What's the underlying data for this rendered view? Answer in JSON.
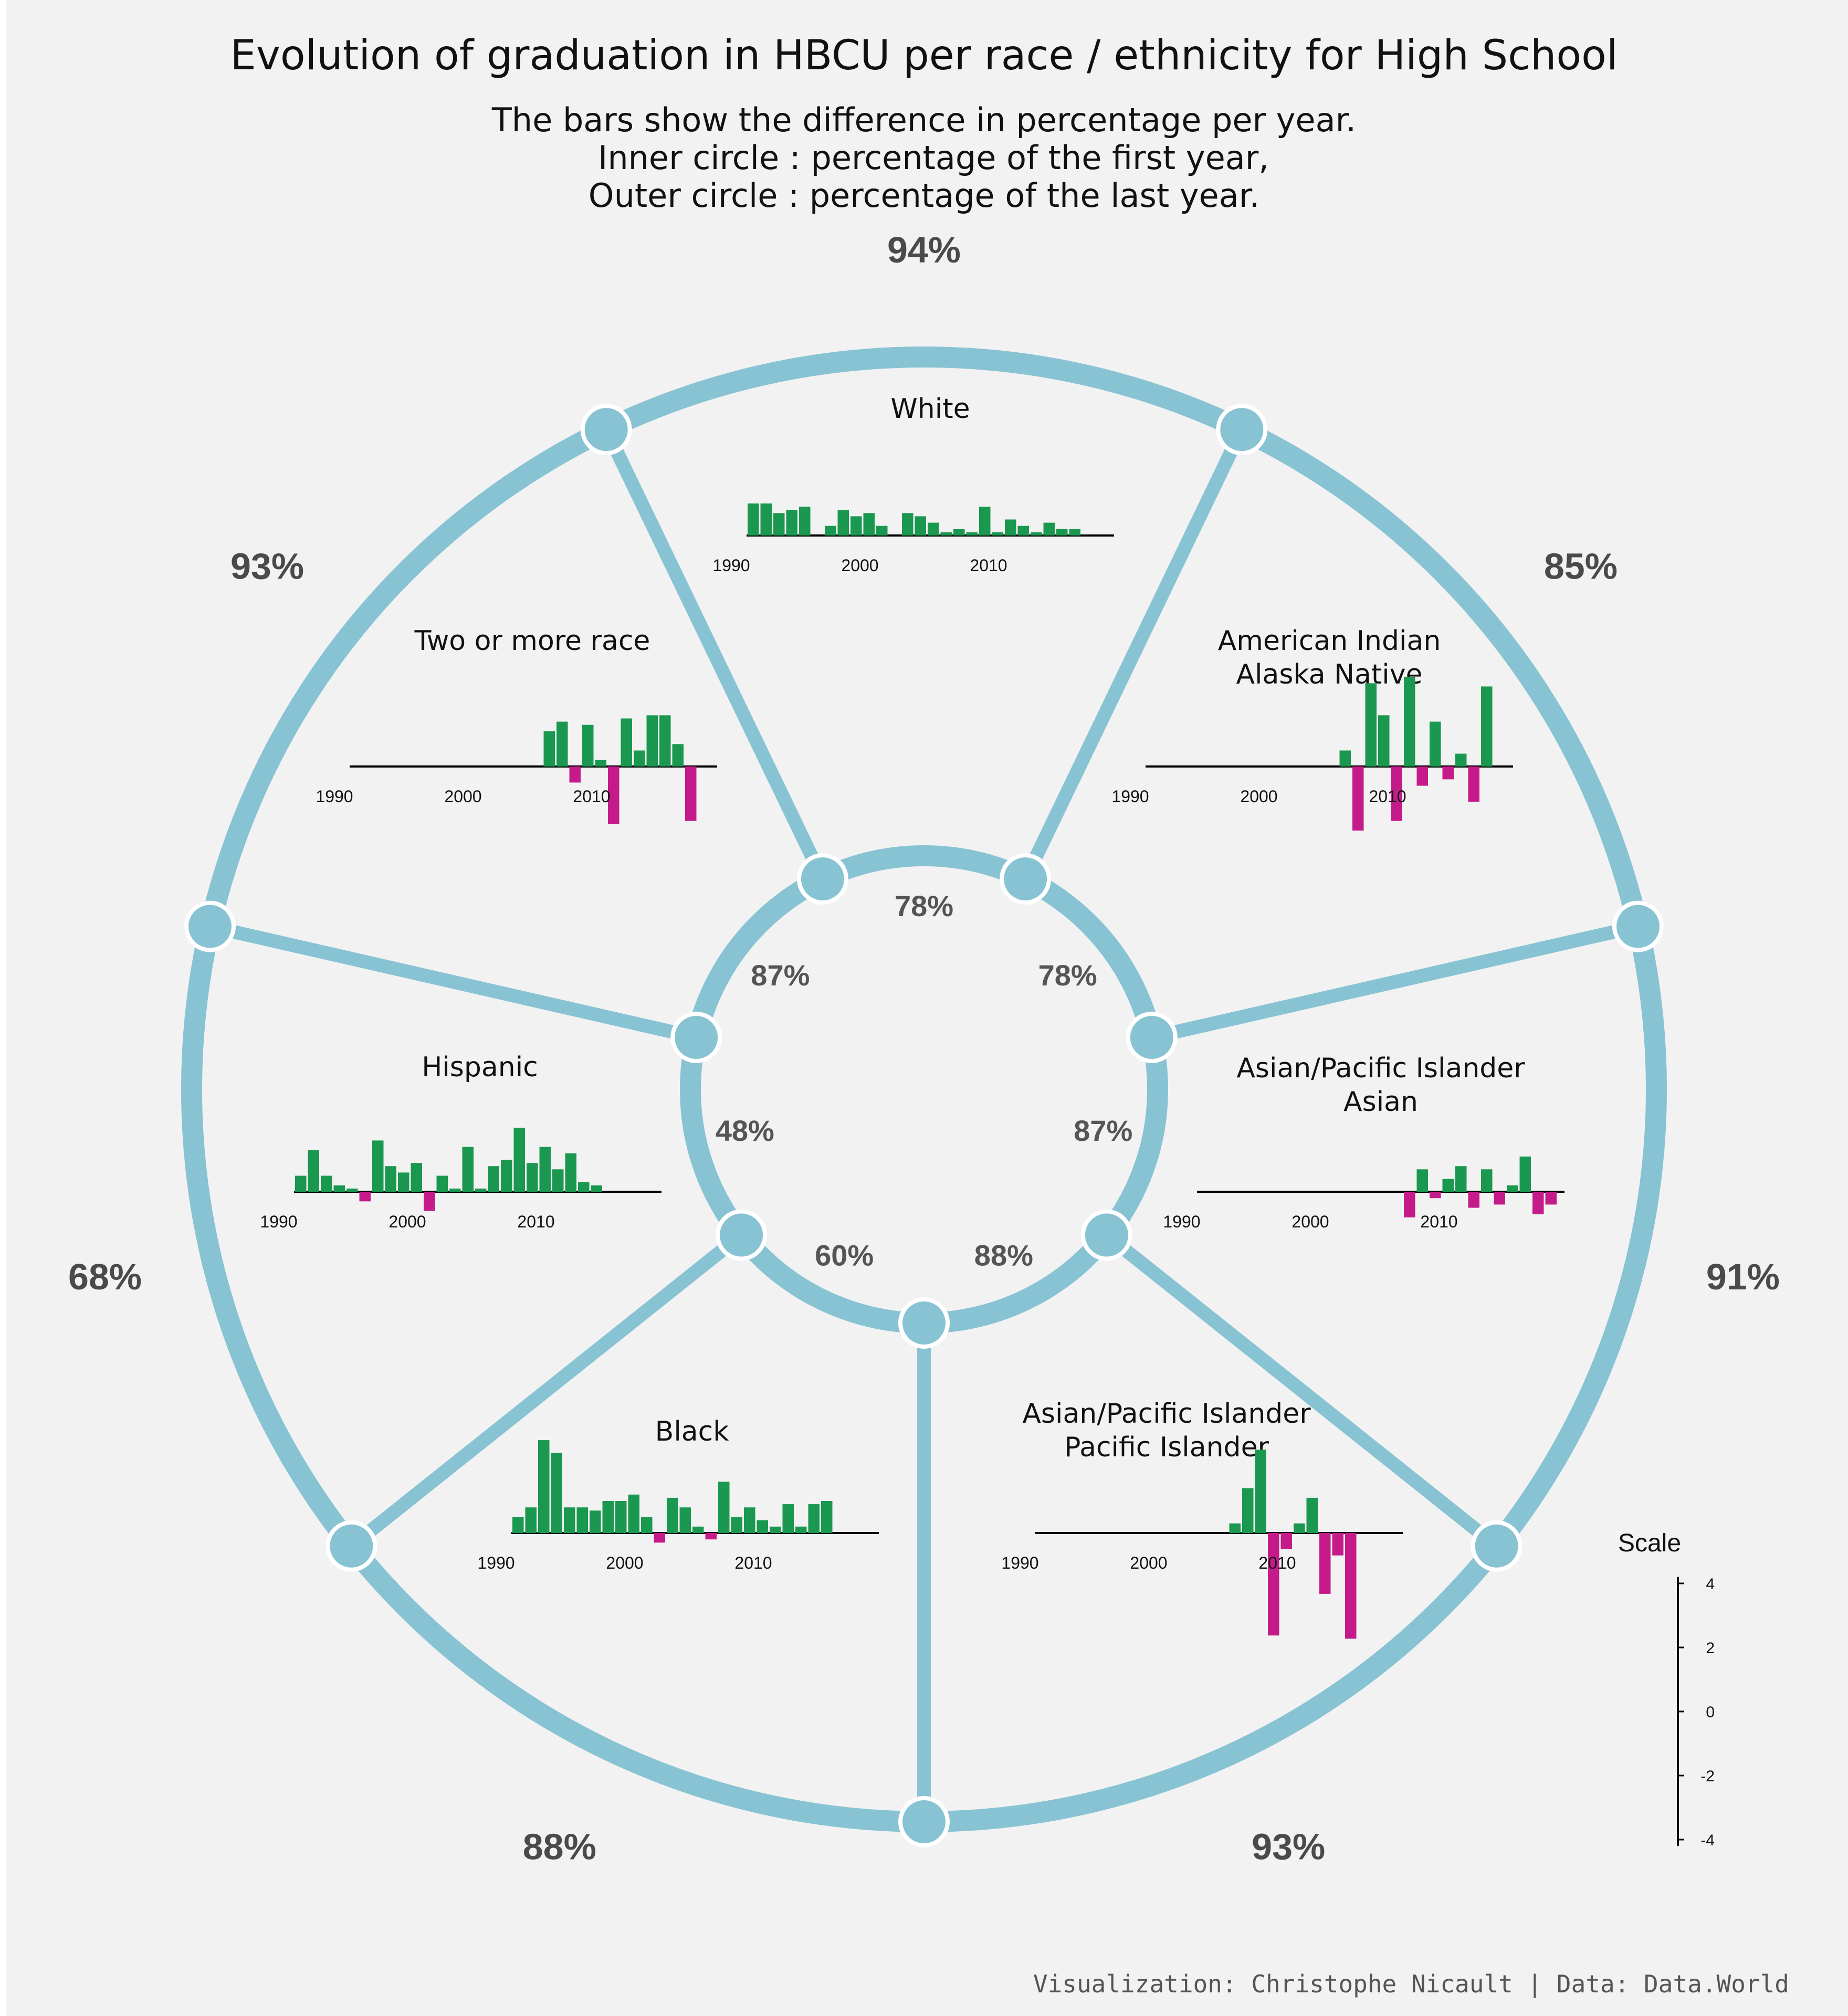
{
  "title": "Evolution of graduation in HBCU per race / ethnicity for High School",
  "subtitle": [
    "The bars show the difference in percentage per year.",
    "Inner circle : percentage of the first year,",
    "Outer circle : percentage of the last year."
  ],
  "caption": "Visualization: Christophe Nicault | Data: Data.World",
  "colors": {
    "ring": "#88c3d4",
    "positive": "#1a9850",
    "negative": "#c51b8a",
    "background": "#f2f2f2"
  },
  "scale": {
    "title": "Scale",
    "ticks": [
      "4",
      "2",
      "0",
      "-2",
      "-4"
    ]
  },
  "chart_data": {
    "type": "bar",
    "x_ticks": [
      "1990",
      "2000",
      "2010"
    ],
    "groups": [
      {
        "name": [
          "White"
        ],
        "first_year_pct": "78%",
        "last_year_pct": "94%",
        "start_year": 1992,
        "values": [
          1.0,
          1.0,
          0.7,
          0.8,
          0.9,
          0.0,
          0.3,
          0.8,
          0.6,
          0.7,
          0.3,
          0.0,
          0.7,
          0.6,
          0.4,
          0.1,
          0.2,
          0.1,
          0.9,
          0.1,
          0.5,
          0.3,
          0.1,
          0.4,
          0.2,
          0.2
        ]
      },
      {
        "name": [
          "American Indian",
          "Alaska Native"
        ],
        "first_year_pct": "78%",
        "last_year_pct": "85%",
        "start_year": 1992,
        "values": [
          0,
          0,
          0,
          0,
          0,
          0,
          0,
          0,
          0,
          0,
          0,
          0,
          0,
          0,
          0,
          0.5,
          -2.0,
          2.6,
          1.6,
          -1.7,
          2.8,
          -0.6,
          1.4,
          -0.4,
          0.4,
          -1.1,
          2.5
        ]
      },
      {
        "name": [
          "Asian/Pacific Islander",
          "Asian"
        ],
        "first_year_pct": "87%",
        "last_year_pct": "91%",
        "start_year": 1992,
        "values": [
          0,
          0,
          0,
          0,
          0,
          0,
          0,
          0,
          0,
          0,
          0,
          0,
          0,
          0,
          0,
          0,
          -0.8,
          0.7,
          -0.2,
          0.4,
          0.8,
          -0.5,
          0.7,
          -0.4,
          0.2,
          1.1,
          -0.7,
          -0.4
        ]
      },
      {
        "name": [
          "Asian/Pacific Islander",
          "Pacific Islander"
        ],
        "first_year_pct": "88%",
        "last_year_pct": "93%",
        "start_year": 1992,
        "values": [
          0,
          0,
          0,
          0,
          0,
          0,
          0,
          0,
          0,
          0,
          0,
          0,
          0,
          0,
          0,
          0.3,
          1.4,
          2.6,
          -3.2,
          -0.5,
          0.3,
          1.1,
          -1.9,
          -0.7,
          -3.3
        ]
      },
      {
        "name": [
          "Black"
        ],
        "first_year_pct": "60%",
        "last_year_pct": "88%",
        "start_year": 1992,
        "values": [
          0.5,
          0.8,
          2.9,
          2.5,
          0.8,
          0.8,
          0.7,
          1.0,
          1.0,
          1.2,
          0.5,
          -0.3,
          1.1,
          0.8,
          0.2,
          -0.2,
          1.6,
          0.5,
          0.8,
          0.4,
          0.2,
          0.9,
          0.2,
          0.9,
          1.0
        ]
      },
      {
        "name": [
          "Hispanic"
        ],
        "first_year_pct": "48%",
        "last_year_pct": "68%",
        "start_year": 1992,
        "values": [
          0.5,
          1.3,
          0.5,
          0.2,
          0.1,
          -0.3,
          1.6,
          0.8,
          0.6,
          0.9,
          -0.6,
          0.5,
          0.1,
          1.4,
          0.1,
          0.8,
          1.0,
          2.0,
          0.9,
          1.4,
          0.7,
          1.2,
          0.3,
          0.2
        ]
      },
      {
        "name": [
          "Two or more race"
        ],
        "first_year_pct": "87%",
        "last_year_pct": "93%",
        "start_year": 1992,
        "values": [
          0,
          0,
          0,
          0,
          0,
          0,
          0,
          0,
          0,
          0,
          0,
          0,
          0,
          0,
          0,
          1.1,
          1.4,
          -0.5,
          1.3,
          0.2,
          -1.8,
          1.5,
          0.5,
          1.6,
          1.6,
          0.7,
          -1.7
        ]
      }
    ]
  }
}
